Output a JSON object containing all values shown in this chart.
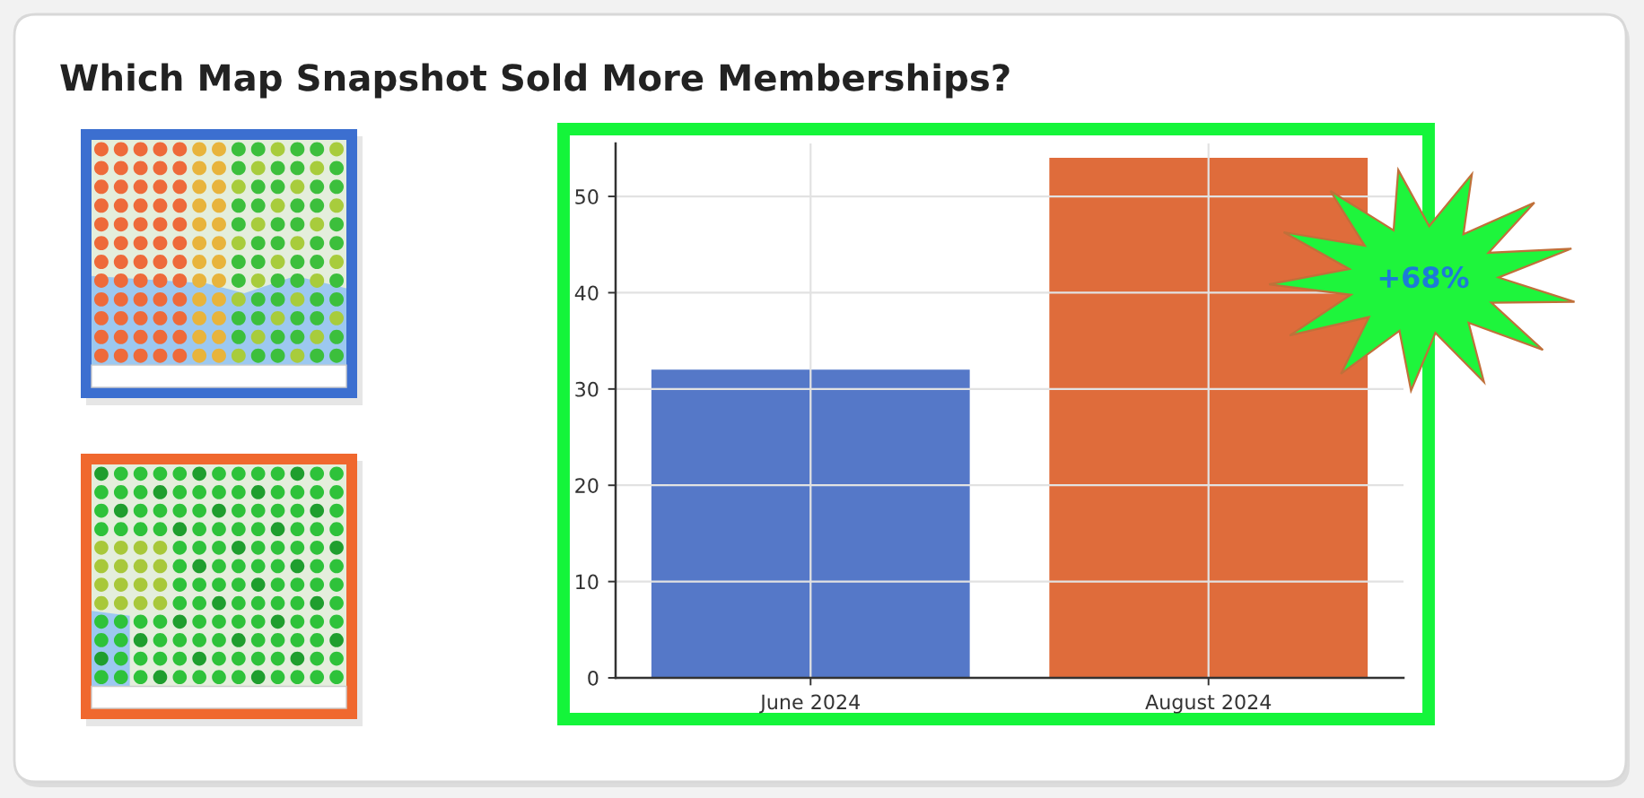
{
  "chart_data": {
    "type": "bar",
    "title": "Which Map Snapshot Sold More Memberships?",
    "categories": [
      "June 2024",
      "August 2024"
    ],
    "values": [
      32,
      54
    ],
    "colors": [
      "#5578c8",
      "#df6c3b"
    ],
    "ylim": [
      0,
      55.5
    ],
    "yticks": [
      0,
      10,
      20,
      30,
      40,
      50
    ],
    "grid": true,
    "annotations": [
      "+68%"
    ]
  }
}
